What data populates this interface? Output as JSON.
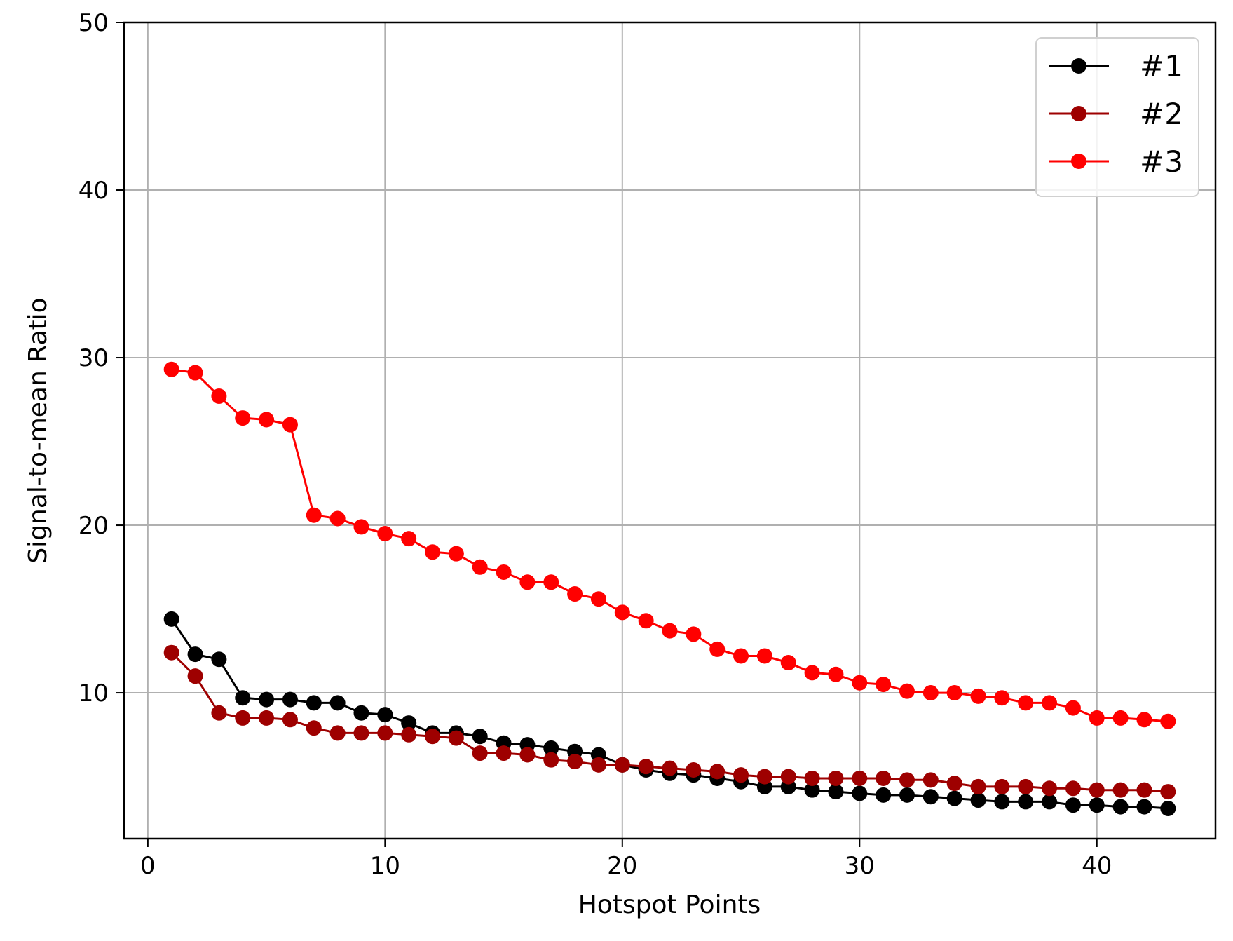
{
  "chart_data": {
    "type": "line",
    "title": "",
    "xlabel": "Hotspot Points",
    "ylabel": "Signal-to-mean Ratio",
    "xlim": [
      -1,
      45
    ],
    "ylim": [
      1.3,
      50
    ],
    "xticks": [
      0,
      10,
      20,
      30,
      40
    ],
    "yticks": [
      10,
      20,
      30,
      40,
      50
    ],
    "grid": true,
    "legend_position": "top-right",
    "x": [
      1,
      2,
      3,
      4,
      5,
      6,
      7,
      8,
      9,
      10,
      11,
      12,
      13,
      14,
      15,
      16,
      17,
      18,
      19,
      20,
      21,
      22,
      23,
      24,
      25,
      26,
      27,
      28,
      29,
      30,
      31,
      32,
      33,
      34,
      35,
      36,
      37,
      38,
      39,
      40,
      41,
      42,
      43
    ],
    "series": [
      {
        "name": "#1",
        "color": "#000000",
        "values": [
          14.4,
          12.3,
          12.0,
          9.7,
          9.6,
          9.6,
          9.4,
          9.4,
          8.8,
          8.7,
          8.2,
          7.6,
          7.6,
          7.4,
          7.0,
          6.9,
          6.7,
          6.5,
          6.3,
          5.7,
          5.4,
          5.2,
          5.1,
          4.9,
          4.7,
          4.4,
          4.4,
          4.2,
          4.1,
          4.0,
          3.9,
          3.9,
          3.8,
          3.7,
          3.6,
          3.5,
          3.5,
          3.5,
          3.3,
          3.3,
          3.2,
          3.2,
          3.1
        ]
      },
      {
        "name": "#2",
        "color": "#9e0000",
        "values": [
          12.4,
          11.0,
          8.8,
          8.5,
          8.5,
          8.4,
          7.9,
          7.6,
          7.6,
          7.6,
          7.5,
          7.4,
          7.3,
          6.4,
          6.4,
          6.3,
          6.0,
          5.9,
          5.7,
          5.7,
          5.6,
          5.5,
          5.4,
          5.3,
          5.1,
          5.0,
          5.0,
          4.9,
          4.9,
          4.9,
          4.9,
          4.8,
          4.8,
          4.6,
          4.4,
          4.4,
          4.4,
          4.3,
          4.3,
          4.2,
          4.2,
          4.2,
          4.1
        ]
      },
      {
        "name": "#3",
        "color": "#ff0000",
        "values": [
          29.3,
          29.1,
          27.7,
          26.4,
          26.3,
          26.0,
          20.6,
          20.4,
          19.9,
          19.5,
          19.2,
          18.4,
          18.3,
          17.5,
          17.2,
          16.6,
          16.6,
          15.9,
          15.6,
          14.8,
          14.3,
          13.7,
          13.5,
          12.6,
          12.2,
          12.2,
          11.8,
          11.2,
          11.1,
          10.6,
          10.5,
          10.1,
          10.0,
          10.0,
          9.8,
          9.7,
          9.4,
          9.4,
          9.1,
          8.5,
          8.5,
          8.4,
          8.3
        ]
      }
    ]
  }
}
